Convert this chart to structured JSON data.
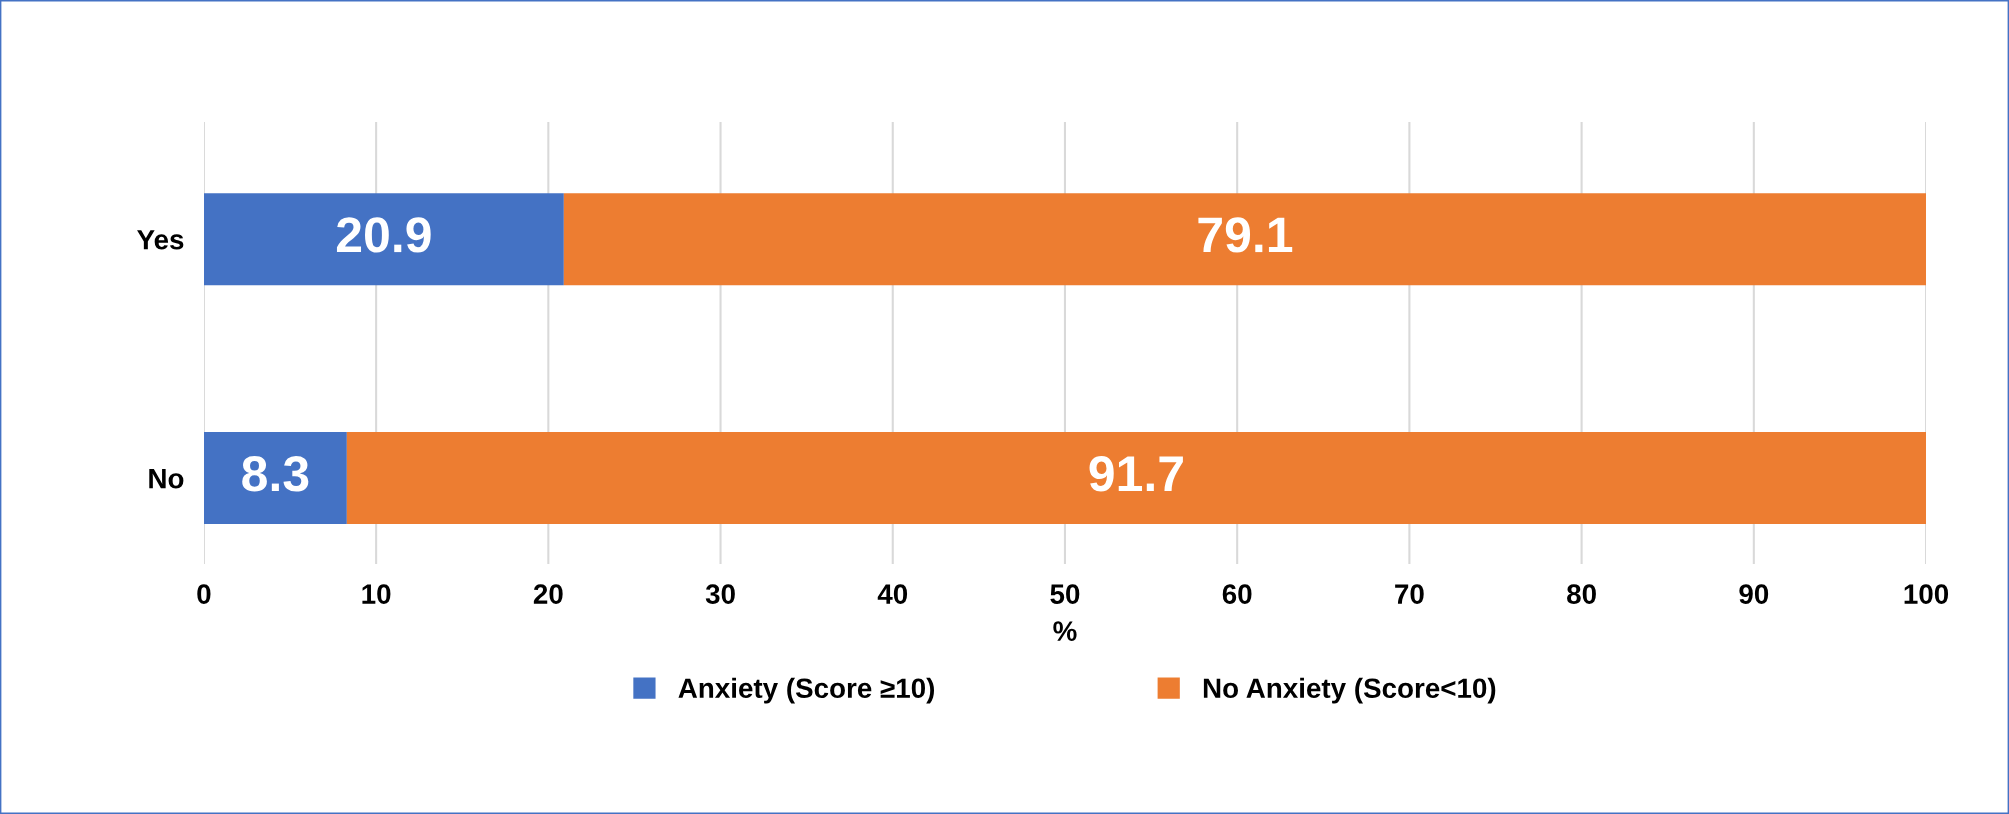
{
  "chart_data": {
    "type": "bar",
    "orientation": "horizontal",
    "stacked": true,
    "xlabel": "%",
    "categories": [
      "Yes",
      "No"
    ],
    "series": [
      {
        "name": "Anxiety (Score ≥10)",
        "color": "#4472c4",
        "values": [
          20.9,
          8.3
        ]
      },
      {
        "name": "No Anxiety (Score<10)",
        "color": "#ed7d31",
        "values": [
          79.1,
          91.7
        ]
      }
    ],
    "xlim": [
      0,
      100
    ],
    "xticks": [
      0,
      10,
      20,
      30,
      40,
      50,
      60,
      70,
      80,
      90,
      100
    ],
    "grid": "x",
    "legend": "bottom",
    "data_labels": true
  }
}
